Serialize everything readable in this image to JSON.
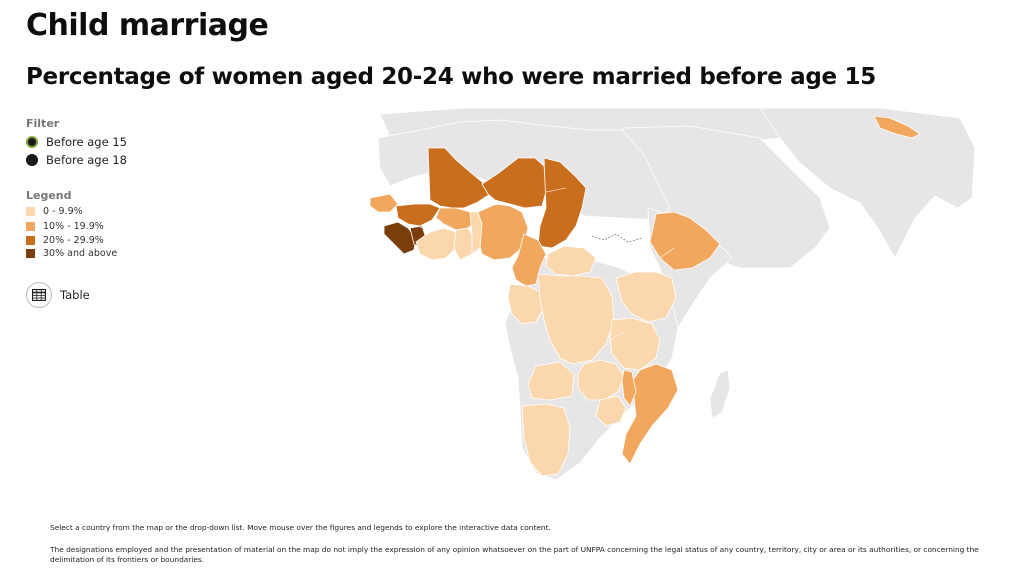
{
  "header": {
    "title": "Child marriage",
    "subtitle": "Percentage of women aged 20-24 who were married before age 15"
  },
  "filter": {
    "heading": "Filter",
    "options": [
      {
        "label": "Before age 15",
        "selected": true
      },
      {
        "label": "Before age 18",
        "selected": false
      }
    ]
  },
  "legend": {
    "heading": "Legend",
    "items": [
      {
        "label": "0 - 9.9%",
        "color": "#fbd7ad"
      },
      {
        "label": "10% - 19.9%",
        "color": "#f2a75f"
      },
      {
        "label": "20% - 29.9%",
        "color": "#c96e1d"
      },
      {
        "label": "30% and above",
        "color": "#7a3d0c"
      }
    ]
  },
  "table_button": {
    "label": "Table",
    "icon": "table-icon"
  },
  "map": {
    "base_color": "#e6e6e6",
    "border_color": "#ffffff"
  },
  "footer": {
    "instruction": "Select a country from the map or the drop-down list. Move mouse over the figures and legends to explore the interactive data content.",
    "disclaimer": "The designations employed and the presentation of material on the map do not imply the expression of any opinion whatsoever on the part of UNFPA concerning the legal status of any country, territory, city or area or its authorities, or concerning the delimitation of its frontiers or boundaries."
  }
}
